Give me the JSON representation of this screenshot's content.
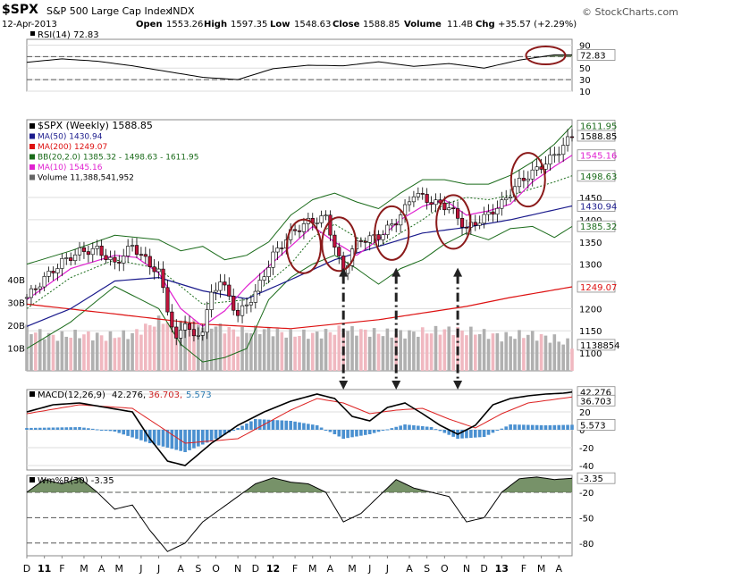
{
  "header": {
    "symbol": "$SPX",
    "name": "S&P 500 Large Cap Index",
    "exchange": "INDX",
    "date": "12-Apr-2013",
    "watermark": "© StockCharts.com",
    "open_label": "Open",
    "open": "1553.26",
    "high_label": "High",
    "high": "1597.35",
    "low_label": "Low",
    "low": "1548.63",
    "close_label": "Close",
    "close": "1588.85",
    "volume_label": "Volume",
    "volume": "11.4B",
    "chg_label": "Chg",
    "chg": "+35.57 (+2.29%)"
  },
  "colors": {
    "up_candle": "#ffffff",
    "down_candle": "#c0143c",
    "candle_outline": "#000000",
    "ma50": "#1a1a8c",
    "ma200": "#dd1111",
    "bb": "#1a6b1a",
    "ma10": "#e020d0",
    "vol_up": "#b0b0b0",
    "vol_down": "#f0b8c0",
    "macd_hist": "#4a90d0",
    "fill_green": "#5f7f4f",
    "circle": "#8b1a1a"
  },
  "chart_data": [
    {
      "panel": "rsi",
      "type": "line",
      "title": "RSI(14) 72.83",
      "legend": "RSI(14)",
      "last_value": "72.83",
      "ylim": [
        10,
        100
      ],
      "ticks": [
        "90",
        "70",
        "50",
        "30",
        "10"
      ],
      "ref_lines": [
        70,
        30
      ],
      "weeks": [
        0,
        8,
        16,
        24,
        32,
        40,
        48,
        56,
        64,
        72,
        80,
        88,
        96,
        104,
        112,
        120
      ],
      "values": [
        60,
        66,
        62,
        54,
        44,
        34,
        30,
        49,
        55,
        54,
        61,
        53,
        58,
        50,
        64,
        73
      ]
    },
    {
      "panel": "price",
      "type": "candlestick",
      "title": "$SPX (Weekly) 1588.85",
      "ylim": [
        1060,
        1625
      ],
      "ticks": [
        "1450",
        "1400",
        "1350",
        "1300",
        "1200",
        "1150",
        "1100"
      ],
      "legend": [
        {
          "label": "$SPX (Weekly) 1588.85",
          "series": "candles"
        },
        {
          "label": "MA(50) 1430.94",
          "series": "ma50"
        },
        {
          "label": "MA(200) 1249.07",
          "series": "ma200"
        },
        {
          "label": "BB(20,2.0) 1385.32 - 1498.63 - 1611.95",
          "series": "bb"
        },
        {
          "label": "MA(10) 1545.16",
          "series": "ma10"
        },
        {
          "label": "Volume 11,388,541,952",
          "series": "volume"
        }
      ],
      "value_tags": [
        {
          "label": "1611.95",
          "value": 1611.95,
          "series": "bb"
        },
        {
          "label": "1588.85",
          "value": 1588.85,
          "series": "close"
        },
        {
          "label": "1545.16",
          "value": 1545.16,
          "series": "ma10"
        },
        {
          "label": "1498.63",
          "value": 1498.63,
          "series": "bb"
        },
        {
          "label": "1430.94",
          "value": 1430.94,
          "series": "ma50"
        },
        {
          "label": "1385.32",
          "value": 1385.32,
          "series": "bb"
        },
        {
          "label": "1249.07",
          "value": 1249.07,
          "series": "ma200"
        }
      ],
      "close_points": {
        "weeks": [
          0,
          4,
          8,
          12,
          16,
          20,
          24,
          28,
          30,
          32,
          34,
          36,
          38,
          40,
          42,
          44,
          48,
          52,
          56,
          60,
          64,
          68,
          72,
          74,
          76,
          80,
          84,
          86,
          88,
          92,
          96,
          100,
          104,
          108,
          112,
          116,
          120,
          124
        ],
        "values": [
          1225,
          1268,
          1305,
          1328,
          1333,
          1300,
          1342,
          1298,
          1283,
          1200,
          1125,
          1175,
          1130,
          1155,
          1230,
          1265,
          1185,
          1235,
          1320,
          1369,
          1395,
          1405,
          1278,
          1333,
          1355,
          1362,
          1397,
          1425,
          1460,
          1440,
          1428,
          1380,
          1405,
          1436,
          1485,
          1513,
          1545,
          1589
        ]
      },
      "ma10_points": {
        "weeks": [
          0,
          10,
          20,
          25,
          30,
          35,
          40,
          45,
          50,
          55,
          60,
          65,
          70,
          75,
          80,
          85,
          90,
          95,
          100,
          105,
          110,
          115,
          120,
          124
        ],
        "values": [
          1220,
          1290,
          1320,
          1315,
          1280,
          1200,
          1160,
          1195,
          1250,
          1295,
          1340,
          1385,
          1350,
          1320,
          1355,
          1400,
          1430,
          1445,
          1410,
          1420,
          1435,
          1485,
          1520,
          1545
        ]
      },
      "ma50_points": {
        "weeks": [
          0,
          10,
          20,
          30,
          40,
          50,
          60,
          70,
          80,
          90,
          100,
          110,
          124
        ],
        "values": [
          1160,
          1200,
          1262,
          1270,
          1240,
          1222,
          1265,
          1310,
          1340,
          1370,
          1383,
          1400,
          1431
        ]
      },
      "ma200_points": {
        "weeks": [
          0,
          20,
          40,
          60,
          80,
          100,
          110,
          124
        ],
        "values": [
          1210,
          1188,
          1165,
          1155,
          1175,
          1205,
          1225,
          1249
        ]
      },
      "bb_upper_points": {
        "weeks": [
          0,
          10,
          20,
          30,
          35,
          40,
          45,
          50,
          55,
          60,
          65,
          70,
          75,
          80,
          85,
          90,
          95,
          100,
          105,
          110,
          115,
          120,
          124
        ],
        "values": [
          1300,
          1330,
          1365,
          1355,
          1330,
          1340,
          1310,
          1320,
          1350,
          1410,
          1445,
          1460,
          1440,
          1425,
          1460,
          1490,
          1490,
          1480,
          1480,
          1500,
          1530,
          1570,
          1612
        ]
      },
      "bb_mid_points": {
        "weeks": [
          0,
          10,
          20,
          30,
          40,
          50,
          60,
          65,
          70,
          75,
          80,
          85,
          90,
          95,
          100,
          105,
          110,
          115,
          120,
          124
        ],
        "values": [
          1200,
          1270,
          1310,
          1290,
          1210,
          1220,
          1300,
          1360,
          1390,
          1360,
          1340,
          1370,
          1400,
          1435,
          1450,
          1445,
          1455,
          1470,
          1485,
          1499
        ]
      },
      "bb_lower_points": {
        "weeks": [
          0,
          10,
          20,
          30,
          35,
          40,
          45,
          50,
          55,
          60,
          65,
          70,
          75,
          80,
          85,
          90,
          95,
          100,
          105,
          110,
          115,
          120,
          124
        ],
        "values": [
          1110,
          1170,
          1250,
          1200,
          1120,
          1080,
          1090,
          1110,
          1220,
          1270,
          1300,
          1320,
          1290,
          1255,
          1290,
          1310,
          1345,
          1370,
          1355,
          1380,
          1385,
          1360,
          1385
        ]
      }
    },
    {
      "panel": "volume",
      "type": "bar",
      "ticks": [
        "40B",
        "30B",
        "20B",
        "10B"
      ],
      "ylim": [
        0,
        45
      ],
      "unit": "B",
      "last_value_tag": "1138854",
      "weeks": [
        0,
        6,
        12,
        18,
        24,
        30,
        36,
        42,
        48,
        54,
        60,
        66,
        72,
        78,
        84,
        90,
        96,
        102,
        108,
        114,
        120,
        124
      ],
      "values": [
        18,
        15,
        16,
        15,
        16,
        22,
        21,
        20,
        17,
        18,
        16,
        16,
        18,
        17,
        16,
        17,
        18,
        17,
        15,
        16,
        14,
        11.4
      ]
    },
    {
      "panel": "macd",
      "type": "line",
      "title": "MACD(12,26,9) 42.276, 36.703, 5.573",
      "legend": {
        "label": "MACD(12,26,9)",
        "macd": "42.276",
        "signal": "36.703",
        "hist": "5.573"
      },
      "ylim": [
        -45,
        45
      ],
      "ticks": [
        "40",
        "20",
        "0",
        "-20",
        "-40"
      ],
      "value_tags": [
        {
          "label": "42.276",
          "value": 42.276
        },
        {
          "label": "36.703",
          "value": 36.703
        },
        {
          "label": "5.573",
          "value": 5.573
        }
      ],
      "macd_points": {
        "weeks": [
          0,
          6,
          12,
          18,
          24,
          28,
          32,
          36,
          42,
          48,
          54,
          60,
          66,
          70,
          74,
          78,
          82,
          86,
          90,
          94,
          98,
          102,
          106,
          110,
          114,
          118,
          122,
          124
        ],
        "values": [
          20,
          28,
          30,
          25,
          20,
          -10,
          -35,
          -40,
          -15,
          5,
          20,
          32,
          40,
          35,
          15,
          10,
          25,
          30,
          18,
          5,
          -5,
          5,
          28,
          35,
          38,
          40,
          41,
          42.3
        ]
      },
      "signal_points": {
        "weeks": [
          0,
          12,
          24,
          36,
          48,
          60,
          66,
          72,
          78,
          84,
          90,
          96,
          102,
          108,
          114,
          120,
          124
        ],
        "values": [
          18,
          28,
          24,
          -15,
          -10,
          22,
          35,
          30,
          18,
          22,
          24,
          12,
          2,
          18,
          30,
          34,
          36.7
        ]
      },
      "hist_points": {
        "weeks": [
          0,
          12,
          20,
          28,
          36,
          44,
          52,
          60,
          66,
          72,
          78,
          86,
          92,
          98,
          104,
          110,
          118,
          124
        ],
        "values": [
          2,
          3,
          -2,
          -15,
          -25,
          -8,
          12,
          10,
          5,
          -10,
          -5,
          6,
          3,
          -10,
          -8,
          6,
          5,
          5.6
        ]
      }
    },
    {
      "panel": "williams",
      "type": "line",
      "title": "Wm%R(30) -3.35",
      "legend": "Wm%R(30)",
      "last_value": "-3.35",
      "ylim": [
        -95,
        0
      ],
      "ticks": [
        "-20",
        "-50",
        "-80"
      ],
      "weeks": [
        0,
        4,
        8,
        12,
        16,
        20,
        24,
        28,
        32,
        34,
        36,
        40,
        44,
        48,
        52,
        56,
        60,
        64,
        68,
        72,
        76,
        80,
        84,
        88,
        92,
        96,
        100,
        104,
        108,
        112,
        116,
        120,
        124
      ],
      "values": [
        -20,
        -5,
        -10,
        -3,
        -20,
        -40,
        -35,
        -65,
        -90,
        -85,
        -80,
        -55,
        -40,
        -25,
        -10,
        -3,
        -8,
        -10,
        -20,
        -55,
        -45,
        -25,
        -5,
        -15,
        -20,
        -25,
        -55,
        -50,
        -20,
        -4,
        -2,
        -5,
        -3.35
      ]
    },
    {
      "panel": "axis",
      "type": "axis",
      "month_labels": [
        {
          "label": "D",
          "week": 0
        },
        {
          "label": "11",
          "week": 4,
          "bold": true
        },
        {
          "label": "F",
          "week": 8
        },
        {
          "label": "M",
          "week": 13
        },
        {
          "label": "A",
          "week": 17
        },
        {
          "label": "M",
          "week": 21
        },
        {
          "label": "J",
          "week": 26
        },
        {
          "label": "J",
          "week": 30
        },
        {
          "label": "A",
          "week": 35
        },
        {
          "label": "S",
          "week": 39
        },
        {
          "label": "O",
          "week": 43
        },
        {
          "label": "N",
          "week": 48
        },
        {
          "label": "D",
          "week": 52
        },
        {
          "label": "12",
          "week": 56,
          "bold": true
        },
        {
          "label": "F",
          "week": 61
        },
        {
          "label": "M",
          "week": 65
        },
        {
          "label": "A",
          "week": 69
        },
        {
          "label": "M",
          "week": 74
        },
        {
          "label": "J",
          "week": 78
        },
        {
          "label": "J",
          "week": 82
        },
        {
          "label": "A",
          "week": 87
        },
        {
          "label": "S",
          "week": 91
        },
        {
          "label": "O",
          "week": 95
        },
        {
          "label": "N",
          "week": 100
        },
        {
          "label": "D",
          "week": 104
        },
        {
          "label": "13",
          "week": 108,
          "bold": true
        },
        {
          "label": "F",
          "week": 113
        },
        {
          "label": "M",
          "week": 117
        },
        {
          "label": "A",
          "week": 121
        }
      ]
    }
  ],
  "annotations": {
    "circles": [
      {
        "center_week": 63,
        "center_value": 1340,
        "tag": "oval-feb-2012"
      },
      {
        "center_week": 71,
        "center_value": 1345,
        "tag": "oval-apr-2012"
      },
      {
        "center_week": 83,
        "center_value": 1370,
        "tag": "oval-aug-2012"
      },
      {
        "center_week": 97,
        "center_value": 1395,
        "tag": "oval-oct-2012"
      },
      {
        "center_week": 114,
        "center_value": 1490,
        "tag": "oval-jan-2013"
      },
      {
        "center_week": 118,
        "rsi_value": 72,
        "tag": "oval-rsi"
      }
    ],
    "arrows": [
      {
        "week": 72,
        "tag": "arrow-1"
      },
      {
        "week": 84,
        "tag": "arrow-2"
      },
      {
        "week": 98,
        "tag": "arrow-3"
      }
    ]
  }
}
